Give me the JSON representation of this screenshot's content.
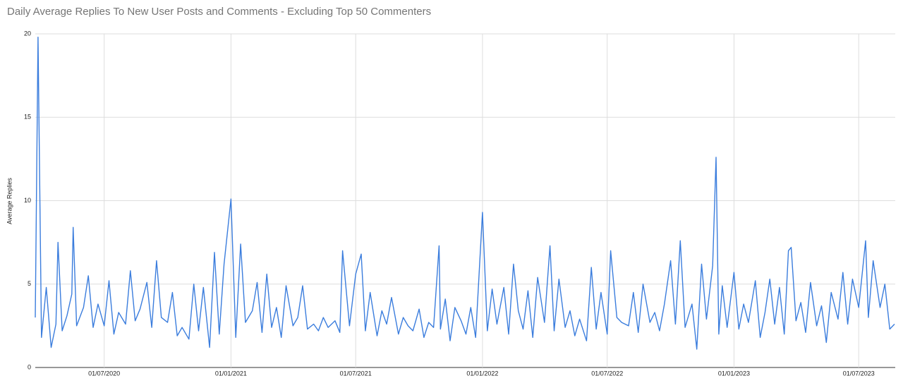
{
  "chart_data": {
    "type": "line",
    "title": "Daily Average Replies To New User Posts and Comments - Excluding Top 50 Commenters",
    "y_label": "Average Replies",
    "x": [
      "2020-03-23",
      "2020-03-27",
      "2020-04-01",
      "2020-04-08",
      "2020-04-15",
      "2020-04-22",
      "2020-04-25",
      "2020-05-01",
      "2020-05-08",
      "2020-05-15",
      "2020-05-17",
      "2020-05-22",
      "2020-06-01",
      "2020-06-08",
      "2020-06-15",
      "2020-06-22",
      "2020-07-01",
      "2020-07-08",
      "2020-07-15",
      "2020-07-22",
      "2020-08-01",
      "2020-08-08",
      "2020-08-15",
      "2020-08-22",
      "2020-09-01",
      "2020-09-08",
      "2020-09-15",
      "2020-09-22",
      "2020-10-01",
      "2020-10-08",
      "2020-10-15",
      "2020-10-22",
      "2020-11-01",
      "2020-11-08",
      "2020-11-15",
      "2020-11-22",
      "2020-12-01",
      "2020-12-08",
      "2020-12-15",
      "2020-12-22",
      "2021-01-01",
      "2021-01-08",
      "2021-01-15",
      "2021-01-22",
      "2021-02-01",
      "2021-02-08",
      "2021-02-15",
      "2021-02-22",
      "2021-03-01",
      "2021-03-08",
      "2021-03-15",
      "2021-03-22",
      "2021-04-01",
      "2021-04-08",
      "2021-04-15",
      "2021-04-22",
      "2021-05-01",
      "2021-05-08",
      "2021-05-15",
      "2021-05-22",
      "2021-06-01",
      "2021-06-08",
      "2021-06-12",
      "2021-06-22",
      "2021-07-01",
      "2021-07-09",
      "2021-07-15",
      "2021-07-22",
      "2021-08-01",
      "2021-08-08",
      "2021-08-15",
      "2021-08-22",
      "2021-09-01",
      "2021-09-08",
      "2021-09-15",
      "2021-09-22",
      "2021-10-01",
      "2021-10-08",
      "2021-10-15",
      "2021-10-22",
      "2021-10-30",
      "2021-11-01",
      "2021-11-08",
      "2021-11-15",
      "2021-11-22",
      "2021-12-01",
      "2021-12-08",
      "2021-12-15",
      "2021-12-22",
      "2022-01-01",
      "2022-01-08",
      "2022-01-15",
      "2022-01-22",
      "2022-02-01",
      "2022-02-08",
      "2022-02-15",
      "2022-02-22",
      "2022-03-01",
      "2022-03-08",
      "2022-03-15",
      "2022-03-22",
      "2022-04-01",
      "2022-04-09",
      "2022-04-15",
      "2022-04-22",
      "2022-05-01",
      "2022-05-08",
      "2022-05-15",
      "2022-05-22",
      "2022-06-01",
      "2022-06-08",
      "2022-06-15",
      "2022-06-22",
      "2022-07-01",
      "2022-07-06",
      "2022-07-15",
      "2022-07-22",
      "2022-08-01",
      "2022-08-08",
      "2022-08-15",
      "2022-08-22",
      "2022-09-01",
      "2022-09-08",
      "2022-09-15",
      "2022-09-22",
      "2022-10-01",
      "2022-10-08",
      "2022-10-15",
      "2022-10-22",
      "2022-11-01",
      "2022-11-08",
      "2022-11-15",
      "2022-11-22",
      "2022-12-01",
      "2022-12-06",
      "2022-12-10",
      "2022-12-15",
      "2022-12-22",
      "2023-01-01",
      "2023-01-08",
      "2023-01-15",
      "2023-01-22",
      "2023-02-01",
      "2023-02-08",
      "2023-02-15",
      "2023-02-22",
      "2023-03-01",
      "2023-03-08",
      "2023-03-15",
      "2023-03-21",
      "2023-03-25",
      "2023-04-01",
      "2023-04-08",
      "2023-04-15",
      "2023-04-22",
      "2023-05-01",
      "2023-05-08",
      "2023-05-15",
      "2023-05-22",
      "2023-06-01",
      "2023-06-08",
      "2023-06-15",
      "2023-06-22",
      "2023-07-01",
      "2023-07-11",
      "2023-07-15",
      "2023-07-22",
      "2023-08-01",
      "2023-08-08",
      "2023-08-15",
      "2023-08-22"
    ],
    "series": [
      {
        "name": "Average Replies",
        "color": "#3b7ddd",
        "values": [
          3.0,
          19.8,
          1.8,
          4.8,
          1.2,
          2.6,
          7.5,
          2.2,
          3.1,
          4.4,
          8.4,
          2.5,
          3.6,
          5.5,
          2.4,
          3.8,
          2.5,
          5.2,
          2.0,
          3.3,
          2.6,
          5.8,
          2.8,
          3.5,
          5.1,
          2.4,
          6.4,
          3.0,
          2.7,
          4.5,
          1.9,
          2.4,
          1.7,
          5.0,
          2.2,
          4.8,
          1.2,
          6.9,
          2.0,
          6.2,
          10.1,
          1.8,
          7.4,
          2.7,
          3.4,
          5.1,
          2.1,
          5.6,
          2.4,
          3.6,
          1.8,
          4.9,
          2.5,
          3.0,
          4.9,
          2.3,
          2.6,
          2.2,
          3.0,
          2.4,
          2.8,
          2.1,
          7.0,
          2.5,
          5.6,
          6.8,
          2.2,
          4.5,
          1.9,
          3.4,
          2.6,
          4.2,
          2.0,
          3.0,
          2.5,
          2.2,
          3.5,
          1.8,
          2.7,
          2.4,
          7.3,
          2.3,
          4.1,
          1.6,
          3.6,
          2.8,
          2.0,
          3.6,
          1.8,
          9.3,
          2.2,
          4.7,
          2.6,
          4.8,
          2.0,
          6.2,
          3.4,
          2.3,
          4.6,
          1.8,
          5.4,
          2.7,
          7.3,
          2.2,
          5.3,
          2.4,
          3.4,
          1.9,
          2.9,
          1.6,
          6.0,
          2.3,
          4.5,
          2.0,
          7.0,
          3.0,
          2.7,
          2.5,
          4.5,
          2.1,
          5.0,
          2.7,
          3.3,
          2.2,
          3.8,
          6.4,
          2.6,
          7.6,
          2.4,
          3.8,
          1.1,
          6.2,
          2.9,
          6.1,
          12.6,
          2.0,
          4.9,
          2.4,
          5.7,
          2.3,
          3.8,
          2.7,
          5.2,
          1.8,
          3.3,
          5.3,
          2.6,
          4.8,
          2.0,
          7.0,
          7.2,
          2.8,
          3.9,
          2.1,
          5.1,
          2.5,
          3.7,
          1.5,
          4.5,
          2.9,
          5.7,
          2.6,
          5.3,
          3.6,
          7.6,
          3.0,
          6.4,
          3.6,
          5.0,
          2.3,
          2.6
        ]
      }
    ],
    "xlim": [
      "2020-03-23",
      "2023-08-23"
    ],
    "xticks": [
      {
        "value": "2020-07-01",
        "label": "01/07/2020"
      },
      {
        "value": "2021-01-01",
        "label": "01/01/2021"
      },
      {
        "value": "2021-07-01",
        "label": "01/07/2021"
      },
      {
        "value": "2022-01-01",
        "label": "01/01/2022"
      },
      {
        "value": "2022-07-01",
        "label": "01/07/2022"
      },
      {
        "value": "2023-01-01",
        "label": "01/01/2023"
      },
      {
        "value": "2023-07-01",
        "label": "01/07/2023"
      }
    ],
    "ylim": [
      0,
      20
    ],
    "yticks": [
      0,
      5,
      10,
      15,
      20
    ],
    "grid": true
  }
}
